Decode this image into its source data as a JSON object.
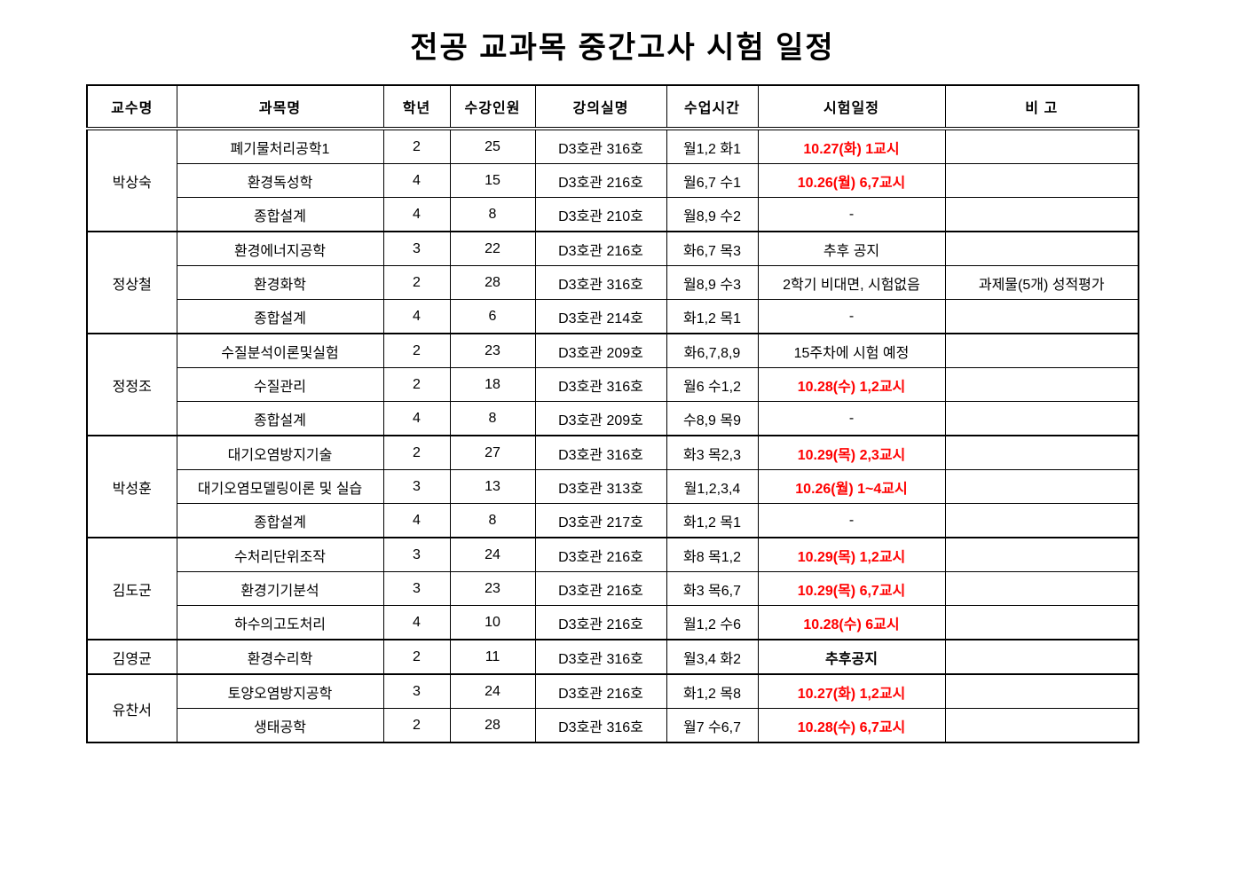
{
  "title": "전공 교과목 중간고사 시험 일정",
  "colors": {
    "exam_highlight_red": "#ff0000",
    "text": "#000000",
    "border": "#000000",
    "background": "#ffffff"
  },
  "table": {
    "headers": [
      "교수명",
      "과목명",
      "학년",
      "수강인원",
      "강의실명",
      "수업시간",
      "시험일정",
      "비 고"
    ],
    "groups": [
      {
        "professor": "박상숙",
        "rows": [
          {
            "subject": "폐기물처리공학1",
            "year": "2",
            "students": "25",
            "room": "D3호관 316호",
            "time": "월1,2 화1",
            "exam": "10.27(화) 1교시",
            "exam_style": "red",
            "note": ""
          },
          {
            "subject": "환경독성학",
            "year": "4",
            "students": "15",
            "room": "D3호관 216호",
            "time": "월6,7 수1",
            "exam": "10.26(월) 6,7교시",
            "exam_style": "red",
            "note": ""
          },
          {
            "subject": "종합설계",
            "year": "4",
            "students": "8",
            "room": "D3호관 210호",
            "time": "월8,9 수2",
            "exam": "-",
            "exam_style": "plain",
            "note": ""
          }
        ]
      },
      {
        "professor": "정상철",
        "rows": [
          {
            "subject": "환경에너지공학",
            "year": "3",
            "students": "22",
            "room": "D3호관 216호",
            "time": "화6,7 목3",
            "exam": "추후 공지",
            "exam_style": "plain",
            "note": ""
          },
          {
            "subject": "환경화학",
            "year": "2",
            "students": "28",
            "room": "D3호관 316호",
            "time": "월8,9 수3",
            "exam": "2학기 비대면, 시험없음",
            "exam_style": "plain",
            "note": "과제물(5개) 성적평가"
          },
          {
            "subject": "종합설계",
            "year": "4",
            "students": "6",
            "room": "D3호관 214호",
            "time": "화1,2 목1",
            "exam": "-",
            "exam_style": "plain",
            "note": ""
          }
        ]
      },
      {
        "professor": "정정조",
        "rows": [
          {
            "subject": "수질분석이론및실험",
            "year": "2",
            "students": "23",
            "room": "D3호관 209호",
            "time": "화6,7,8,9",
            "exam": "15주차에 시험 예정",
            "exam_style": "plain",
            "note": ""
          },
          {
            "subject": "수질관리",
            "year": "2",
            "students": "18",
            "room": "D3호관 316호",
            "time": "월6 수1,2",
            "exam": "10.28(수) 1,2교시",
            "exam_style": "red",
            "note": ""
          },
          {
            "subject": "종합설계",
            "year": "4",
            "students": "8",
            "room": "D3호관 209호",
            "time": "수8,9 목9",
            "exam": "-",
            "exam_style": "plain",
            "note": ""
          }
        ]
      },
      {
        "professor": "박성훈",
        "rows": [
          {
            "subject": "대기오염방지기술",
            "year": "2",
            "students": "27",
            "room": "D3호관 316호",
            "time": "화3 목2,3",
            "exam": "10.29(목) 2,3교시",
            "exam_style": "red",
            "note": ""
          },
          {
            "subject": "대기오염모델링이론 및 실습",
            "year": "3",
            "students": "13",
            "room": "D3호관 313호",
            "time": "월1,2,3,4",
            "exam": "10.26(월) 1~4교시",
            "exam_style": "red",
            "note": ""
          },
          {
            "subject": "종합설계",
            "year": "4",
            "students": "8",
            "room": "D3호관 217호",
            "time": "화1,2 목1",
            "exam": "-",
            "exam_style": "plain",
            "note": ""
          }
        ]
      },
      {
        "professor": "김도군",
        "rows": [
          {
            "subject": "수처리단위조작",
            "year": "3",
            "students": "24",
            "room": "D3호관 216호",
            "time": "화8 목1,2",
            "exam": "10.29(목) 1,2교시",
            "exam_style": "red",
            "note": ""
          },
          {
            "subject": "환경기기분석",
            "year": "3",
            "students": "23",
            "room": "D3호관 216호",
            "time": "화3 목6,7",
            "exam": "10.29(목) 6,7교시",
            "exam_style": "red",
            "note": ""
          },
          {
            "subject": "하수의고도처리",
            "year": "4",
            "students": "10",
            "room": "D3호관 216호",
            "time": "월1,2 수6",
            "exam": "10.28(수) 6교시",
            "exam_style": "red",
            "note": ""
          }
        ]
      },
      {
        "professor": "김영균",
        "rows": [
          {
            "subject": "환경수리학",
            "year": "2",
            "students": "11",
            "room": "D3호관 316호",
            "time": "월3,4 화2",
            "exam": "추후공지",
            "exam_style": "bold",
            "note": ""
          }
        ]
      },
      {
        "professor": "유찬서",
        "rows": [
          {
            "subject": "토양오염방지공학",
            "year": "3",
            "students": "24",
            "room": "D3호관 216호",
            "time": "화1,2 목8",
            "exam": "10.27(화) 1,2교시",
            "exam_style": "red",
            "note": ""
          },
          {
            "subject": "생태공학",
            "year": "2",
            "students": "28",
            "room": "D3호관 316호",
            "time": "월7 수6,7",
            "exam": "10.28(수) 6,7교시",
            "exam_style": "red",
            "note": ""
          }
        ]
      }
    ]
  }
}
